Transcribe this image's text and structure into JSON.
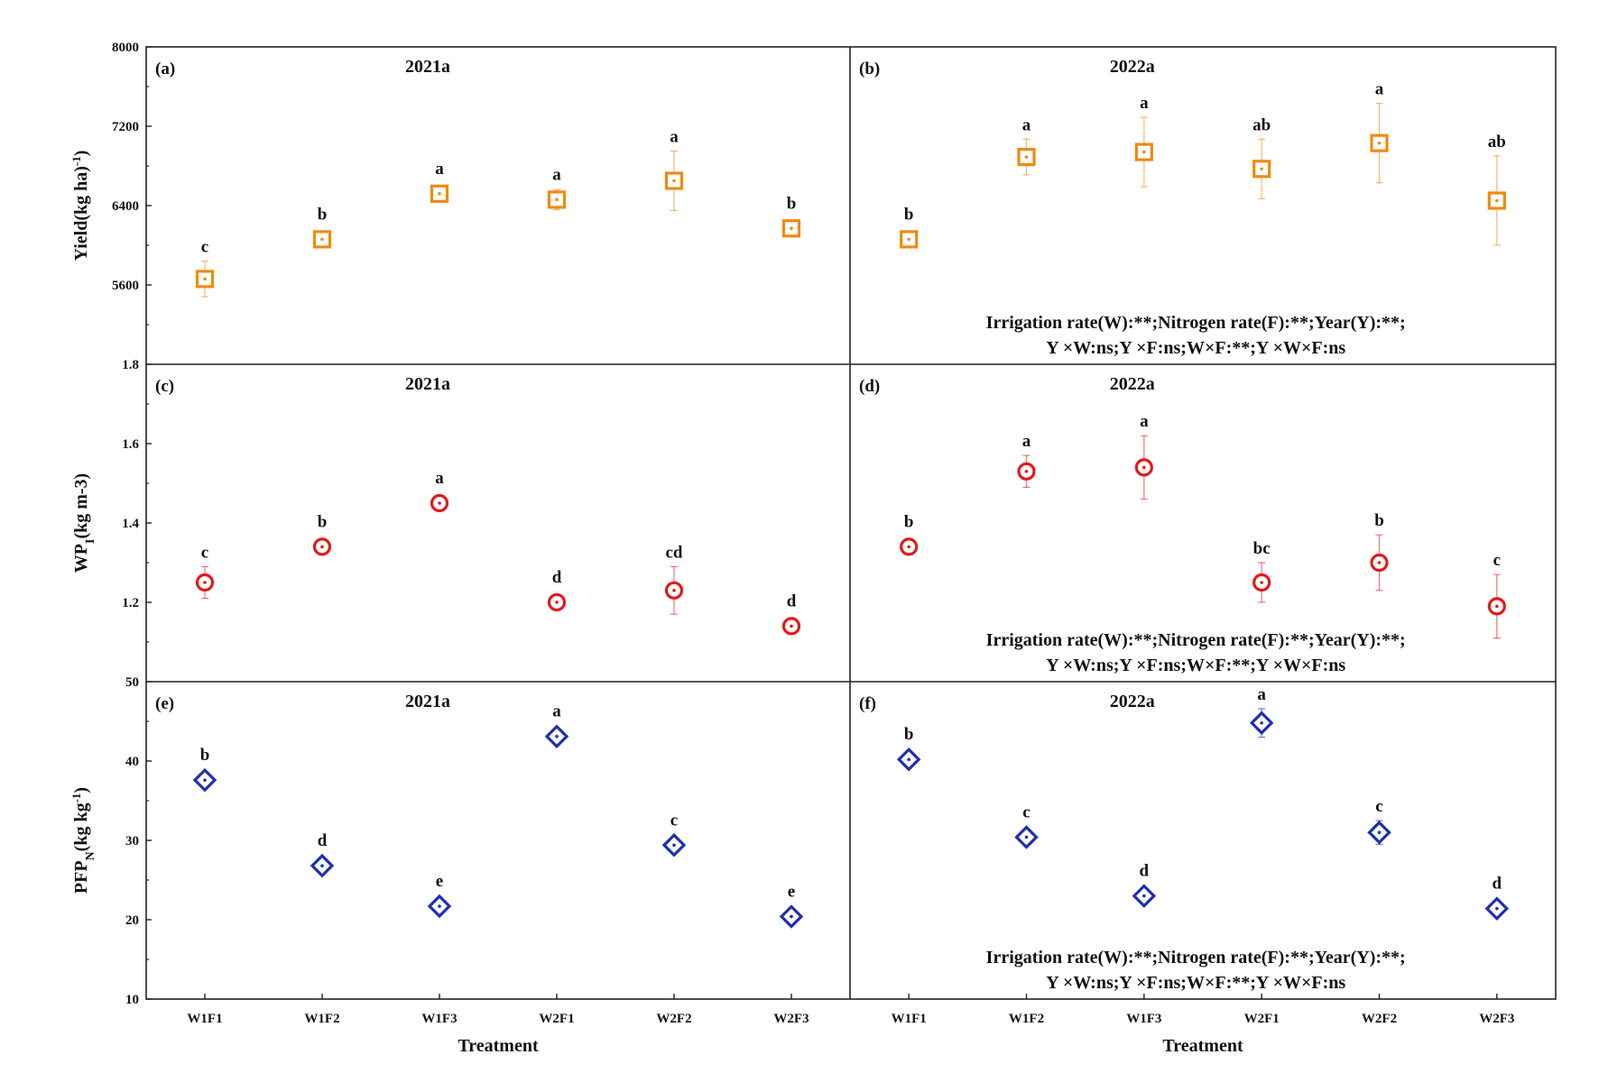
{
  "chart_data": {
    "type": "scatter",
    "shared": {
      "categories": [
        "W1F1",
        "W1F2",
        "W1F3",
        "W2F1",
        "W2F2",
        "W2F3"
      ],
      "xlabel": "Treatment"
    },
    "rows": [
      {
        "ylabel_main": "Yield(kg ha",
        "ylabel_sup": "-1",
        "ylabel_sub": "",
        "ylabel_tail": ")",
        "ylim": [
          4800,
          8000
        ],
        "yticks": [
          "8000",
          "7200",
          "6400",
          "5600"
        ],
        "ytick_values": [
          8000,
          7200,
          6400,
          5600
        ],
        "marker": "square",
        "color": "#f08a10",
        "panels": [
          {
            "label": "(a)",
            "title": "2021a",
            "values": [
              5660,
              6060,
              6520,
              6460,
              6650,
              6170
            ],
            "errors": [
              180,
              60,
              60,
              100,
              300,
              60
            ],
            "letters": [
              "c",
              "b",
              "a",
              "a",
              "a",
              "b"
            ],
            "notes": []
          },
          {
            "label": "(b)",
            "title": "2022a",
            "values": [
              6060,
              6890,
              6940,
              6770,
              7030,
              6450
            ],
            "errors": [
              60,
              180,
              350,
              300,
              400,
              450
            ],
            "letters": [
              "b",
              "a",
              "a",
              "ab",
              "a",
              "ab"
            ],
            "notes": [
              "Irrigation rate(W):**;Nitrogen rate(F):**;Year(Y):**;",
              "Y ×W:ns;Y ×F:ns;W×F:**;Y ×W×F:ns"
            ]
          }
        ]
      },
      {
        "ylabel_main": "WP",
        "ylabel_sup": "",
        "ylabel_sub": "I",
        "ylabel_tail": "(kg m-3)",
        "ylim": [
          1.0,
          1.8
        ],
        "yticks": [
          "1.8",
          "1.6",
          "1.4",
          "1.2"
        ],
        "ytick_values": [
          1.8,
          1.6,
          1.4,
          1.2
        ],
        "marker": "circle",
        "color": "#e01b1b",
        "panels": [
          {
            "label": "(c)",
            "title": "2021a",
            "values": [
              1.25,
              1.34,
              1.45,
              1.2,
              1.23,
              1.14
            ],
            "errors": [
              0.04,
              0.01,
              0.01,
              0.01,
              0.06,
              0.01
            ],
            "letters": [
              "c",
              "b",
              "a",
              "d",
              "cd",
              "d"
            ],
            "notes": []
          },
          {
            "label": "(d)",
            "title": "2022a",
            "values": [
              1.34,
              1.53,
              1.54,
              1.25,
              1.3,
              1.19
            ],
            "errors": [
              0.01,
              0.04,
              0.08,
              0.05,
              0.07,
              0.08
            ],
            "letters": [
              "b",
              "a",
              "a",
              "bc",
              "b",
              "c"
            ],
            "notes": [
              "Irrigation rate(W):**;Nitrogen rate(F):**;Year(Y):**;",
              "Y ×W:ns;Y ×F:ns;W×F:**;Y ×W×F:ns"
            ]
          }
        ]
      },
      {
        "ylabel_main": "PFP",
        "ylabel_sup": "-1",
        "ylabel_sub": "N",
        "ylabel_tail": "(kg kg",
        "ylim": [
          10,
          50
        ],
        "yticks": [
          "50",
          "40",
          "30",
          "20",
          "10"
        ],
        "ytick_values": [
          50,
          40,
          30,
          20,
          10
        ],
        "marker": "diamond",
        "color": "#1f2fb0",
        "panels": [
          {
            "label": "(e)",
            "title": "2021a",
            "values": [
              37.6,
              26.8,
              21.7,
              43.1,
              29.4,
              20.4
            ],
            "errors": [
              0.5,
              0.5,
              0.5,
              0.5,
              0.6,
              0.5
            ],
            "letters": [
              "b",
              "d",
              "e",
              "a",
              "c",
              "e"
            ],
            "notes": []
          },
          {
            "label": "(f)",
            "title": "2022a",
            "values": [
              40.2,
              30.4,
              23.0,
              44.8,
              31.0,
              21.4
            ],
            "errors": [
              0.5,
              0.5,
              0.5,
              1.8,
              1.5,
              0.5
            ],
            "letters": [
              "b",
              "c",
              "d",
              "a",
              "c",
              "d"
            ],
            "notes": [
              "Irrigation rate(W):**;Nitrogen rate(F):**;Year(Y):**;",
              "Y ×W:ns;Y ×F:ns;W×F:**;Y ×W×F:ns"
            ]
          }
        ]
      }
    ]
  }
}
